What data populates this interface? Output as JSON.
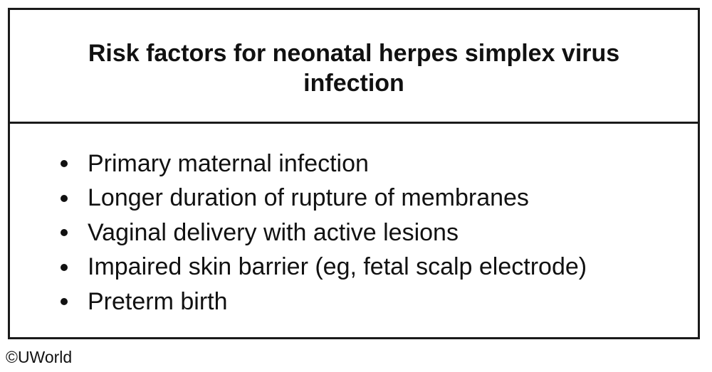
{
  "table": {
    "title": "Risk factors for neonatal herpes simplex virus infection",
    "items": [
      "Primary maternal infection",
      "Longer duration of rupture of membranes",
      "Vaginal delivery with active lesions",
      "Impaired skin barrier (eg, fetal scalp electrode)",
      "Preterm birth"
    ]
  },
  "footer": {
    "copyright": "©UWorld"
  }
}
